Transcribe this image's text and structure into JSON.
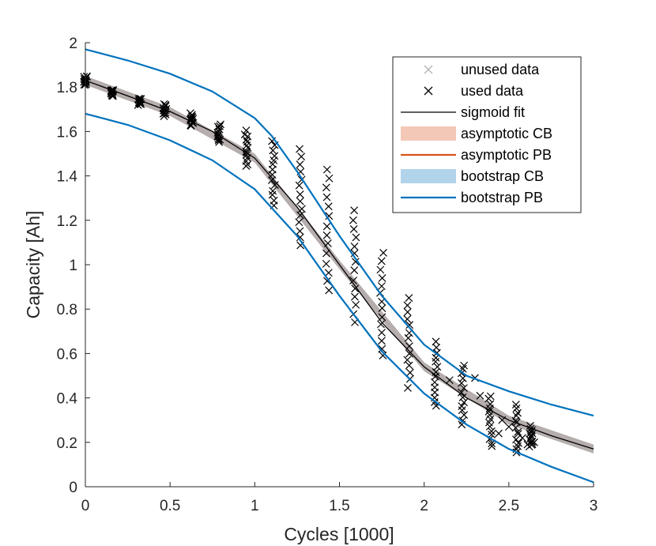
{
  "chart_data": {
    "type": "scatter",
    "title": "",
    "xlabel": "Cycles [1000]",
    "ylabel": "Capacity [Ah]",
    "xlim": [
      0,
      3
    ],
    "ylim": [
      0,
      2
    ],
    "xticks": [
      0,
      0.5,
      1,
      1.5,
      2,
      2.5,
      3
    ],
    "xtick_labels": [
      "0",
      "0.5",
      "1",
      "1.5",
      "2",
      "2.5",
      "3"
    ],
    "yticks": [
      0,
      0.2,
      0.4,
      0.6,
      0.8,
      1,
      1.2,
      1.4,
      1.6,
      1.8,
      2
    ],
    "ytick_labels": [
      "0",
      "0.2",
      "0.4",
      "0.6",
      "0.8",
      "1",
      "1.2",
      "1.4",
      "1.6",
      "1.8",
      "2"
    ],
    "legend_position": "top-right",
    "legend": [
      {
        "label": "unused data",
        "kind": "marker",
        "color": "#b3b3b3"
      },
      {
        "label": "used data",
        "kind": "marker",
        "color": "#000000"
      },
      {
        "label": "sigmoid fit",
        "kind": "line",
        "color": "#000000"
      },
      {
        "label": "asymptotic CB",
        "kind": "band",
        "color": "#f4c8b6"
      },
      {
        "label": "asymptotic PB",
        "kind": "line",
        "color": "#d95319"
      },
      {
        "label": "bootstrap CB",
        "kind": "band",
        "color": "#b2d4ea"
      },
      {
        "label": "bootstrap PB",
        "kind": "line",
        "color": "#0072bd"
      }
    ],
    "curves": {
      "sigmoid_fit": {
        "x": [
          0,
          0.25,
          0.5,
          0.75,
          1.0,
          1.25,
          1.5,
          1.75,
          2.0,
          2.25,
          2.5,
          2.75,
          3.0
        ],
        "y": [
          1.83,
          1.76,
          1.69,
          1.6,
          1.48,
          1.26,
          1.0,
          0.74,
          0.54,
          0.4,
          0.3,
          0.23,
          0.17
        ]
      },
      "asymptotic_cb": {
        "x": [
          0,
          0.5,
          1.0,
          1.5,
          2.0,
          2.5,
          3.0
        ],
        "lower": [
          1.81,
          1.67,
          1.46,
          0.98,
          0.52,
          0.28,
          0.15
        ],
        "upper": [
          1.85,
          1.71,
          1.5,
          1.02,
          0.56,
          0.32,
          0.19
        ]
      },
      "bootstrap_pb_upper": {
        "x": [
          0,
          0.25,
          0.5,
          0.75,
          1.0,
          1.1,
          1.25,
          1.5,
          1.75,
          2.0,
          2.25,
          2.5,
          2.75,
          3.0
        ],
        "y": [
          1.97,
          1.92,
          1.86,
          1.78,
          1.66,
          1.58,
          1.42,
          1.13,
          0.86,
          0.64,
          0.5,
          0.43,
          0.37,
          0.32
        ]
      },
      "bootstrap_pb_lower": {
        "x": [
          0,
          0.25,
          0.5,
          0.75,
          1.0,
          1.25,
          1.5,
          1.75,
          2.0,
          2.25,
          2.5,
          2.75,
          3.0
        ],
        "y": [
          1.68,
          1.63,
          1.56,
          1.47,
          1.34,
          1.13,
          0.86,
          0.61,
          0.42,
          0.28,
          0.17,
          0.09,
          0.02
        ]
      }
    },
    "used_data_clusters": [
      {
        "x": 0.0,
        "ymin": 1.81,
        "ymax": 1.85
      },
      {
        "x": 0.16,
        "ymin": 1.76,
        "ymax": 1.79
      },
      {
        "x": 0.32,
        "ymin": 1.72,
        "ymax": 1.75
      },
      {
        "x": 0.47,
        "ymin": 1.67,
        "ymax": 1.72
      },
      {
        "x": 0.63,
        "ymin": 1.63,
        "ymax": 1.68
      },
      {
        "x": 0.79,
        "ymin": 1.55,
        "ymax": 1.63
      },
      {
        "x": 0.95,
        "ymin": 1.44,
        "ymax": 1.6
      },
      {
        "x": 1.11,
        "ymin": 1.27,
        "ymax": 1.56
      },
      {
        "x": 1.27,
        "ymin": 1.09,
        "ymax": 1.52
      },
      {
        "x": 1.43,
        "ymin": 0.88,
        "ymax": 1.43
      },
      {
        "x": 1.59,
        "ymin": 0.74,
        "ymax": 1.24
      },
      {
        "x": 1.75,
        "ymin": 0.59,
        "ymax": 1.05
      },
      {
        "x": 1.91,
        "ymin": 0.45,
        "ymax": 0.85
      },
      {
        "x": 2.07,
        "ymin": 0.36,
        "ymax": 0.65
      },
      {
        "x": 2.23,
        "ymin": 0.28,
        "ymax": 0.55
      },
      {
        "x": 2.39,
        "ymin": 0.18,
        "ymax": 0.41
      },
      {
        "x": 2.55,
        "ymin": 0.15,
        "ymax": 0.37
      },
      {
        "x": 2.63,
        "ymin": 0.18,
        "ymax": 0.27
      }
    ]
  }
}
